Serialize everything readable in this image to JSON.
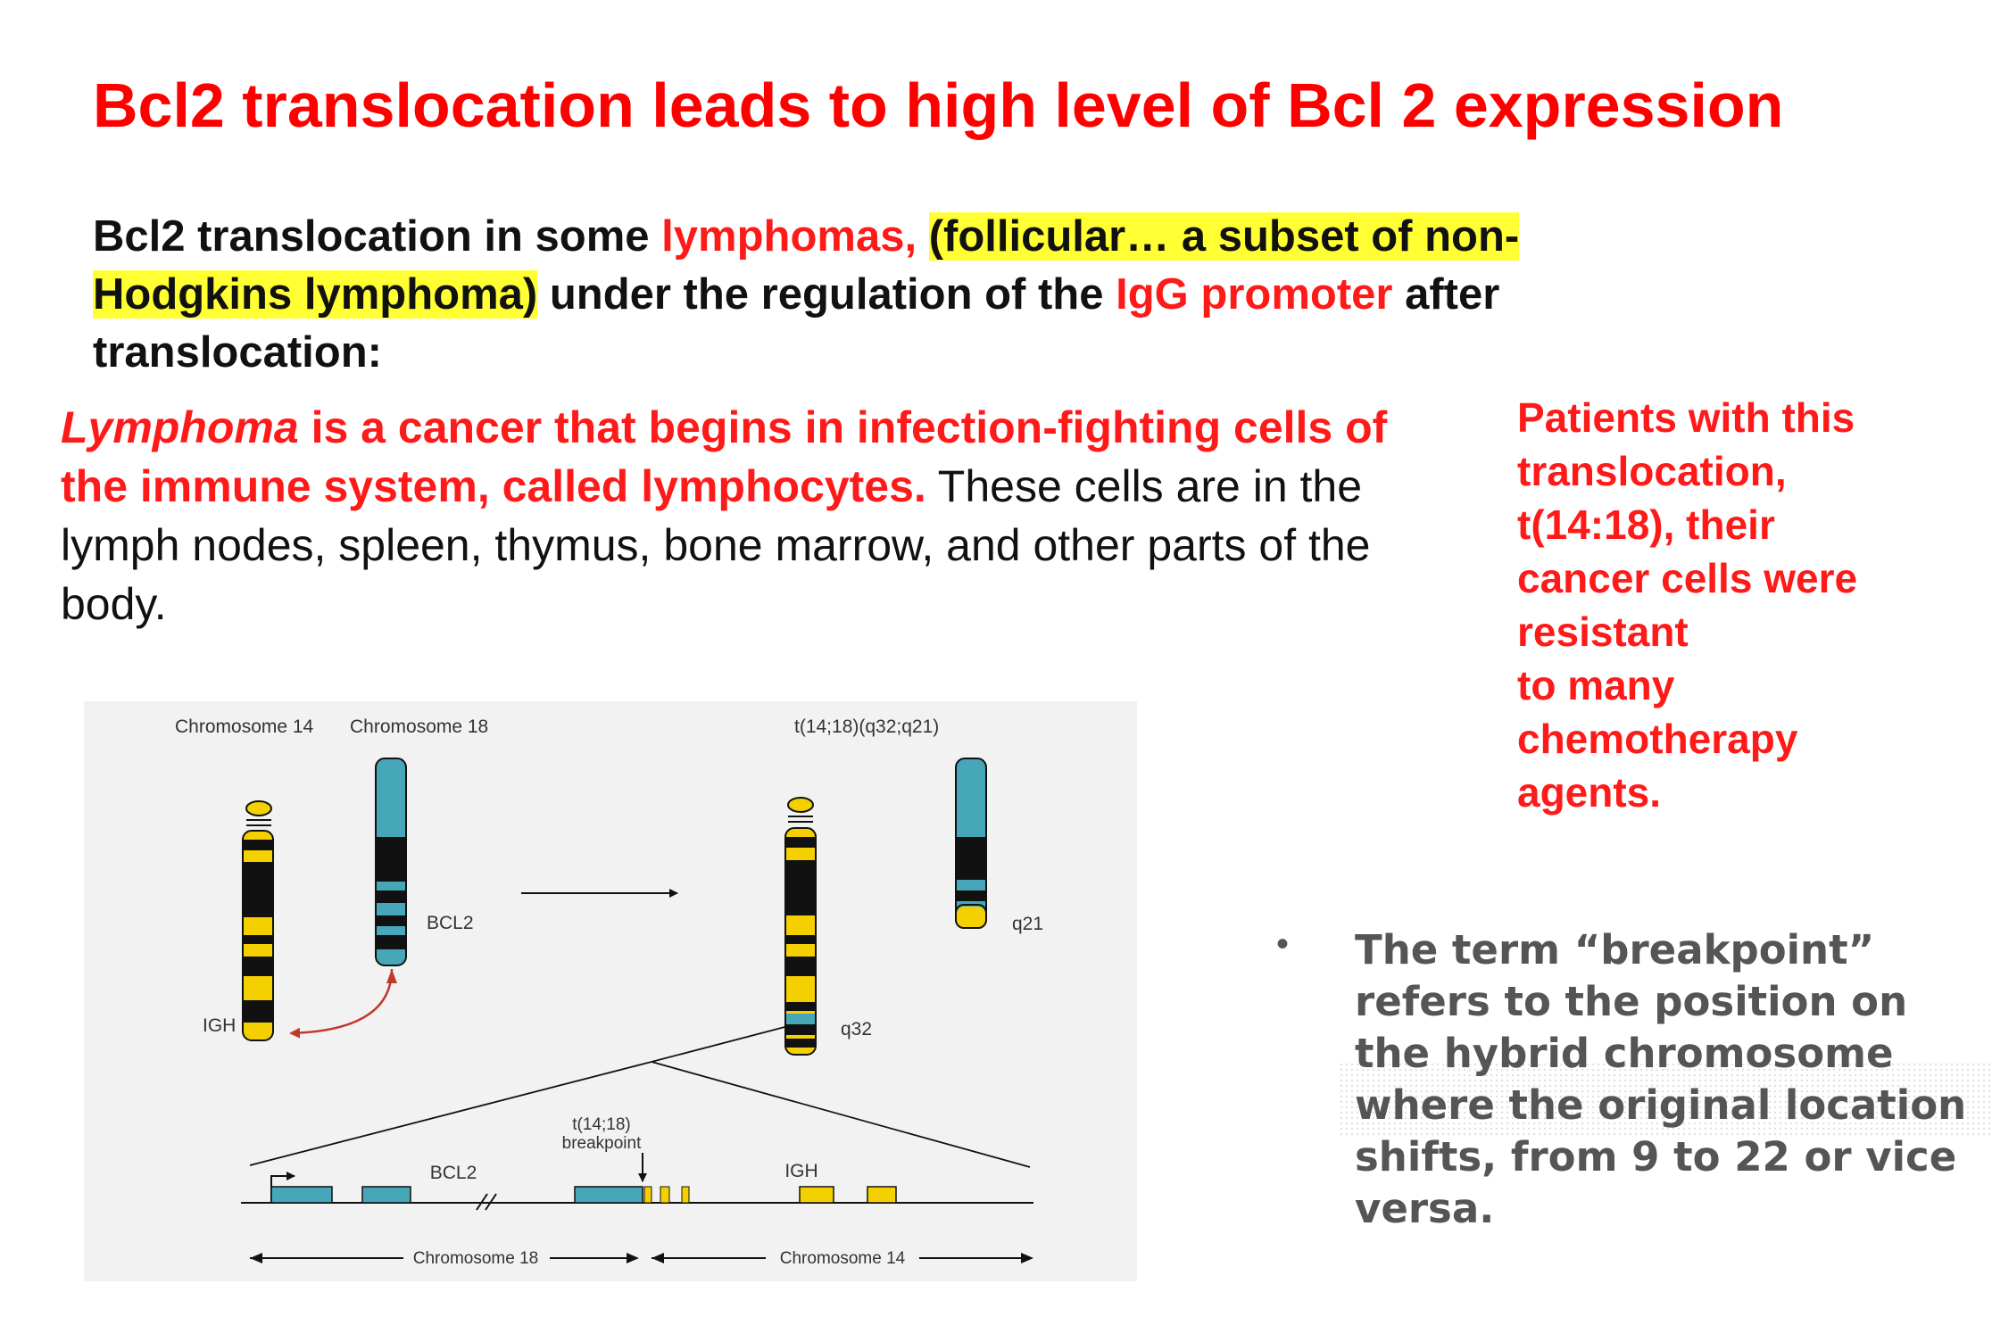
{
  "slide": {
    "title": "Bcl2 translocation leads to high level of Bcl 2 expression",
    "intro": {
      "part1": "Bcl2 translocation in some ",
      "part2_red": "lymphomas, ",
      "part3_highlight_a": "(follicular… a subset of non-",
      "part3_highlight_b": "Hodgkins lymphoma)",
      "part4": " under the regulation of the  ",
      "part5_red": "IgG promoter",
      "part6": " after translocation:"
    },
    "definition": {
      "term": "Lymphoma",
      "red_rest": " is a cancer that begins in infection-fighting cells of the immune system, called lymphocytes.",
      "plain": " These cells are in the lymph nodes, spleen, thymus, bone marrow, and other parts of the body."
    },
    "side_note": {
      "lines": [
        "Patients with this",
        "translocation,",
        "t(14:18), their",
        "cancer cells were",
        "resistant",
        "to many",
        "chemotherapy",
        "agents."
      ]
    },
    "bullet": {
      "marker": "•",
      "text": "The term “breakpoint” refers to the position on the hybrid chromosome where the original location shifts, from 9 to 22 or vice versa."
    }
  },
  "diagram": {
    "label_chr14": "Chromosome 14",
    "label_chr18": "Chromosome 18",
    "label_translocation": "t(14;18)(q32;q21)",
    "label_bcl2": "BCL2",
    "label_igh": "IGH",
    "label_q21": "q21",
    "label_q32": "q32",
    "bp_line1": "t(14;18)",
    "bp_line2": "breakpoint",
    "label_bcl2_gene": "BCL2",
    "label_igh_gene": "IGH",
    "axis_chr18": "Chromosome 18",
    "axis_chr14": "Chromosome 14",
    "colors": {
      "yellow": "#f5d000",
      "teal": "#45a7b8",
      "black": "#111111",
      "arrow_red": "#c03a2b"
    }
  }
}
